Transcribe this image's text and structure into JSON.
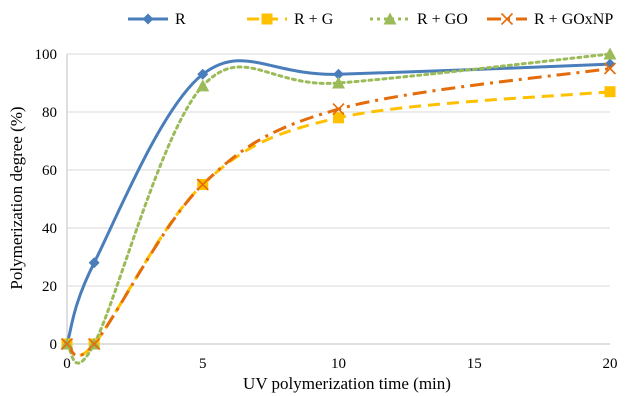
{
  "chart_data": {
    "type": "line",
    "title": "",
    "xlabel": "UV polymerization time (min)",
    "ylabel": "Polymerization degree (%)",
    "xlim": [
      0,
      20
    ],
    "ylim": [
      0,
      100
    ],
    "xticks": [
      0,
      5,
      10,
      15,
      20
    ],
    "yticks": [
      0,
      20,
      40,
      60,
      80,
      100
    ],
    "grid": "horizontal",
    "legend_position": "top",
    "series": [
      {
        "name": "R",
        "color": "#4A7EBB",
        "dash": "solid",
        "marker": "diamond",
        "x": [
          0,
          1,
          5,
          10,
          20
        ],
        "y": [
          0,
          28,
          93,
          93,
          96.5
        ]
      },
      {
        "name": "R + G",
        "color": "#FFC000",
        "dash": "dashed",
        "marker": "square",
        "x": [
          0,
          1,
          5,
          10,
          20
        ],
        "y": [
          0,
          0,
          55,
          78,
          87
        ]
      },
      {
        "name": "R + GO",
        "color": "#9BBB59",
        "dash": "dotted",
        "marker": "triangle",
        "x": [
          0,
          1,
          5,
          10,
          20
        ],
        "y": [
          0,
          0,
          89,
          90,
          100
        ]
      },
      {
        "name": "R + GOxNP",
        "color": "#E46C0A",
        "dash": "dashdot",
        "marker": "x",
        "x": [
          0,
          1,
          5,
          10,
          20
        ],
        "y": [
          0,
          0,
          55,
          81,
          95
        ]
      }
    ]
  }
}
